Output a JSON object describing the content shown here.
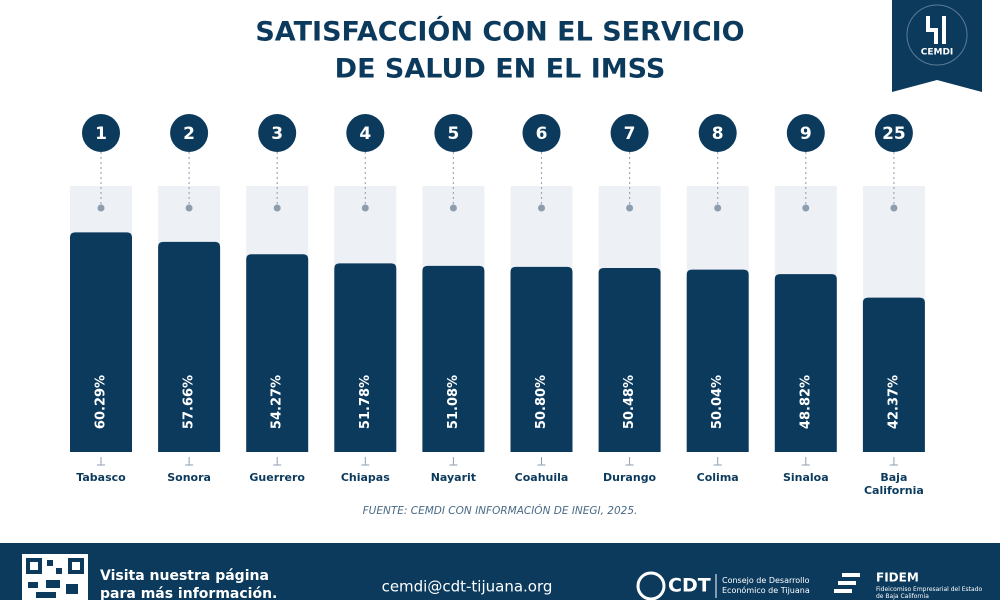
{
  "chart_data": {
    "type": "bar",
    "title": [
      "SATISFACCIÓN CON EL SERVICIO",
      "DE SALUD EN EL IMSS"
    ],
    "ranks": [
      1,
      2,
      3,
      4,
      5,
      6,
      7,
      8,
      9,
      25
    ],
    "categories": [
      "Tabasco",
      "Sonora",
      "Guerrero",
      "Chiapas",
      "Nayarit",
      "Coahuila",
      "Durango",
      "Colima",
      "Sinaloa",
      "Baja California"
    ],
    "values": [
      60.29,
      57.66,
      54.27,
      51.78,
      51.08,
      50.8,
      50.48,
      50.04,
      48.82,
      42.37
    ],
    "value_labels": [
      "60.29%",
      "57.66%",
      "54.27%",
      "51.78%",
      "51.08%",
      "50.80%",
      "50.48%",
      "50.04%",
      "48.82%",
      "42.37%"
    ],
    "color": "#0b3a5d",
    "ylim": [
      0,
      73
    ],
    "source": "FUENTE: CEMDI CON INFORMACIÓN DE INEGI, 2025."
  },
  "logo": "CEMDI",
  "footer": {
    "visit": "Visita nuestra página para más información.",
    "email": "cemdi@cdt-tijuana.org",
    "cdt": "CDT",
    "cdt_name": "Consejo de Desarrollo Económico de Tijuana",
    "fidem": "FIDEM",
    "fidem_name": "Fideicomiso Empresarial del Estado de Baja California"
  }
}
